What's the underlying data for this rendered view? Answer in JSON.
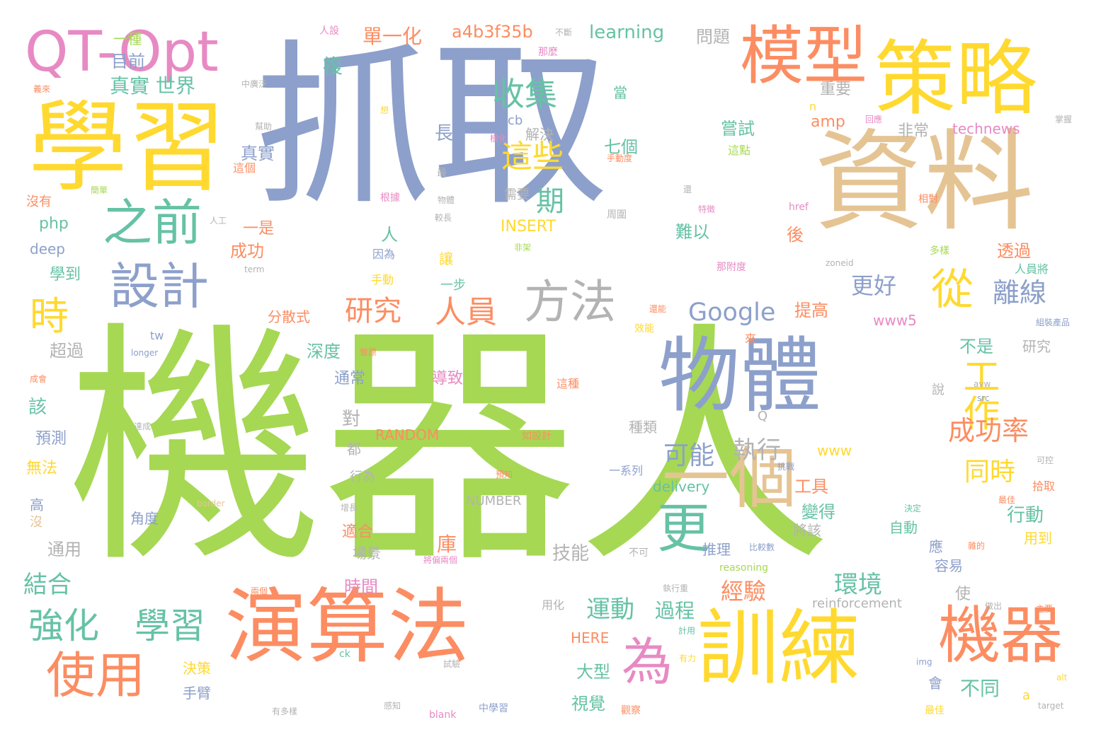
{
  "palette": {
    "green": "#a6d854",
    "blue": "#8da0cb",
    "orange": "#fc8d62",
    "yellow": "#ffd92f",
    "tan": "#e5c494",
    "teal": "#66c2a5",
    "pink": "#e78ac3",
    "gray": "#b3b3b3"
  },
  "words": [
    {
      "text": "機器人",
      "c": "green"
    },
    {
      "text": "抓取",
      "c": "blue"
    },
    {
      "text": "資料",
      "c": "tan"
    },
    {
      "text": "策略",
      "c": "yellow"
    },
    {
      "text": "學習",
      "c": "yellow"
    },
    {
      "text": "QT-Opt",
      "c": "pink"
    },
    {
      "text": "模型",
      "c": "orange"
    },
    {
      "text": "演算法",
      "c": "orange"
    },
    {
      "text": "訓練",
      "c": "yellow"
    },
    {
      "text": "物體",
      "c": "blue"
    },
    {
      "text": "一個",
      "c": "tan"
    },
    {
      "text": "機器",
      "c": "orange"
    },
    {
      "text": "之前",
      "c": "teal"
    },
    {
      "text": "設計",
      "c": "blue"
    },
    {
      "text": "方法",
      "c": "gray"
    },
    {
      "text": "使用",
      "c": "orange"
    },
    {
      "text": "從",
      "c": "yellow"
    },
    {
      "text": "更",
      "c": "teal"
    },
    {
      "text": "時",
      "c": "yellow"
    },
    {
      "text": "工作",
      "c": "yellow"
    },
    {
      "text": "為",
      "c": "pink"
    },
    {
      "text": "強化",
      "c": "teal"
    },
    {
      "text": "學習",
      "c": "teal"
    },
    {
      "text": "收集",
      "c": "teal"
    },
    {
      "text": "這些",
      "c": "yellow"
    },
    {
      "text": "期",
      "c": "teal"
    },
    {
      "text": "研究",
      "c": "orange"
    },
    {
      "text": "人員",
      "c": "orange"
    },
    {
      "text": "Google",
      "c": "blue"
    },
    {
      "text": "成功率",
      "c": "orange"
    },
    {
      "text": "可能",
      "c": "blue"
    },
    {
      "text": "執行",
      "c": "gray"
    },
    {
      "text": "同時",
      "c": "yellow"
    },
    {
      "text": "離線",
      "c": "blue"
    },
    {
      "text": "更好",
      "c": "blue"
    },
    {
      "text": "環境",
      "c": "teal"
    },
    {
      "text": "運動",
      "c": "teal"
    },
    {
      "text": "經驗",
      "c": "orange"
    },
    {
      "text": "過程",
      "c": "teal"
    },
    {
      "text": "真實 世界",
      "c": "teal"
    },
    {
      "text": "單一化",
      "c": "orange"
    },
    {
      "text": "a4b3f35b",
      "c": "orange"
    },
    {
      "text": "learning",
      "c": "teal"
    },
    {
      "text": "問題",
      "c": "gray"
    },
    {
      "text": "複",
      "c": "teal"
    },
    {
      "text": "目前",
      "c": "blue"
    },
    {
      "text": "一種",
      "c": "green"
    },
    {
      "text": "重要",
      "c": "gray"
    },
    {
      "text": "technews",
      "c": "pink"
    },
    {
      "text": "嘗試",
      "c": "teal"
    },
    {
      "text": "非常",
      "c": "gray"
    },
    {
      "text": "這點",
      "c": "green"
    },
    {
      "text": "解決",
      "c": "gray"
    },
    {
      "text": "amp",
      "c": "orange"
    },
    {
      "text": "cb",
      "c": "blue"
    },
    {
      "text": "長",
      "c": "blue"
    },
    {
      "text": "當",
      "c": "teal"
    },
    {
      "text": "七個",
      "c": "teal"
    },
    {
      "text": "需要",
      "c": "gray"
    },
    {
      "text": "真實",
      "c": "blue"
    },
    {
      "text": "INSERT",
      "c": "yellow"
    },
    {
      "text": "一是",
      "c": "orange"
    },
    {
      "text": "難以",
      "c": "teal"
    },
    {
      "text": "後",
      "c": "orange"
    },
    {
      "text": "透過",
      "c": "orange"
    },
    {
      "text": "php",
      "c": "teal"
    },
    {
      "text": "deep",
      "c": "blue"
    },
    {
      "text": "學到",
      "c": "teal"
    },
    {
      "text": "成功",
      "c": "orange"
    },
    {
      "text": "人",
      "c": "teal"
    },
    {
      "text": "讓",
      "c": "yellow"
    },
    {
      "text": "分散式",
      "c": "orange"
    },
    {
      "text": "提高",
      "c": "orange"
    },
    {
      "text": "www5",
      "c": "pink"
    },
    {
      "text": "研究",
      "c": "gray"
    },
    {
      "text": "不是",
      "c": "teal"
    },
    {
      "text": "深度",
      "c": "teal"
    },
    {
      "text": "超過",
      "c": "gray"
    },
    {
      "text": "通常",
      "c": "blue"
    },
    {
      "text": "導致",
      "c": "pink"
    },
    {
      "text": "這種",
      "c": "orange"
    },
    {
      "text": "該",
      "c": "teal"
    },
    {
      "text": "對",
      "c": "gray"
    },
    {
      "text": "預測",
      "c": "blue"
    },
    {
      "text": "RANDOM",
      "c": "orange"
    },
    {
      "text": "無法",
      "c": "yellow"
    },
    {
      "text": "都",
      "c": "gray"
    },
    {
      "text": "種類",
      "c": "gray"
    },
    {
      "text": "www",
      "c": "yellow"
    },
    {
      "text": "delivery",
      "c": "teal"
    },
    {
      "text": "NUMBER",
      "c": "gray"
    },
    {
      "text": "工具",
      "c": "orange"
    },
    {
      "text": "變得",
      "c": "teal"
    },
    {
      "text": "將該",
      "c": "gray"
    },
    {
      "text": "行動",
      "c": "teal"
    },
    {
      "text": "自動",
      "c": "teal"
    },
    {
      "text": "應",
      "c": "blue"
    },
    {
      "text": "用到",
      "c": "yellow"
    },
    {
      "text": "容易",
      "c": "blue"
    },
    {
      "text": "推理",
      "c": "blue"
    },
    {
      "text": "技能",
      "c": "gray"
    },
    {
      "text": "庫",
      "c": "orange"
    },
    {
      "text": "適合",
      "c": "orange"
    },
    {
      "text": "場景",
      "c": "gray"
    },
    {
      "text": "行為",
      "c": "gray"
    },
    {
      "text": "角度",
      "c": "blue"
    },
    {
      "text": "通用",
      "c": "gray"
    },
    {
      "text": "高",
      "c": "blue"
    },
    {
      "text": "沒",
      "c": "tan"
    },
    {
      "text": "結合",
      "c": "teal"
    },
    {
      "text": "時間",
      "c": "pink"
    },
    {
      "text": "使",
      "c": "gray"
    },
    {
      "text": "reinforcement",
      "c": "gray"
    },
    {
      "text": "用化",
      "c": "gray"
    },
    {
      "text": "HERE",
      "c": "orange"
    },
    {
      "text": "大型",
      "c": "teal"
    },
    {
      "text": "視覺",
      "c": "teal"
    },
    {
      "text": "決策",
      "c": "yellow"
    },
    {
      "text": "手臂",
      "c": "blue"
    },
    {
      "text": "會",
      "c": "blue"
    },
    {
      "text": "不同",
      "c": "teal"
    },
    {
      "text": "一步",
      "c": "teal"
    },
    {
      "text": "手動",
      "c": "yellow"
    },
    {
      "text": "因為",
      "c": "blue"
    },
    {
      "text": "來",
      "c": "orange"
    },
    {
      "text": "效能",
      "c": "yellow"
    },
    {
      "text": "tw",
      "c": "blue"
    },
    {
      "text": "longer",
      "c": "blue"
    },
    {
      "text": "term",
      "c": "gray"
    },
    {
      "text": "href",
      "c": "pink"
    },
    {
      "text": "zoneid",
      "c": "gray"
    },
    {
      "text": "src",
      "c": "blue"
    },
    {
      "text": "img",
      "c": "blue"
    },
    {
      "text": "alt",
      "c": "yellow"
    },
    {
      "text": "a",
      "c": "yellow"
    },
    {
      "text": "target",
      "c": "gray"
    },
    {
      "text": "blank",
      "c": "pink"
    },
    {
      "text": "ck",
      "c": "teal"
    },
    {
      "text": "border",
      "c": "tan"
    },
    {
      "text": "avw",
      "c": "gray"
    },
    {
      "text": "reasoning",
      "c": "green"
    },
    {
      "text": "Q",
      "c": "gray"
    },
    {
      "text": "n",
      "c": "yellow"
    },
    {
      "text": "一系列",
      "c": "blue"
    },
    {
      "text": "說",
      "c": "gray"
    },
    {
      "text": "人員將",
      "c": "teal"
    },
    {
      "text": "拾取",
      "c": "orange"
    },
    {
      "text": "組裝產品",
      "c": "blue"
    },
    {
      "text": "不斷",
      "c": "gray"
    },
    {
      "text": "那麼",
      "c": "pink"
    },
    {
      "text": "回應",
      "c": "pink"
    },
    {
      "text": "掌握",
      "c": "gray"
    },
    {
      "text": "人設",
      "c": "pink"
    },
    {
      "text": "義來",
      "c": "orange"
    },
    {
      "text": "中廣泛",
      "c": "gray"
    },
    {
      "text": "幫助",
      "c": "gray"
    },
    {
      "text": "這個",
      "c": "orange"
    },
    {
      "text": "沒有",
      "c": "orange"
    },
    {
      "text": "簡單",
      "c": "green"
    },
    {
      "text": "根據",
      "c": "pink"
    },
    {
      "text": "物體",
      "c": "gray"
    },
    {
      "text": "較長",
      "c": "gray"
    },
    {
      "text": "非架",
      "c": "green"
    },
    {
      "text": "人工",
      "c": "gray"
    },
    {
      "text": "周圍",
      "c": "gray"
    },
    {
      "text": "那附度",
      "c": "pink"
    },
    {
      "text": "還能",
      "c": "orange"
    },
    {
      "text": "特徵",
      "c": "pink"
    },
    {
      "text": "多樣",
      "c": "green"
    },
    {
      "text": "相對",
      "c": "orange"
    },
    {
      "text": "手動度",
      "c": "orange"
    },
    {
      "text": "模化",
      "c": "pink"
    },
    {
      "text": "最",
      "c": "gray"
    },
    {
      "text": "想",
      "c": "yellow"
    },
    {
      "text": "還",
      "c": "gray"
    },
    {
      "text": "成會",
      "c": "orange"
    },
    {
      "text": "管原",
      "c": "orange"
    },
    {
      "text": "達成",
      "c": "gray"
    },
    {
      "text": "如設計",
      "c": "orange"
    },
    {
      "text": "預知",
      "c": "orange"
    },
    {
      "text": "挑戰",
      "c": "blue"
    },
    {
      "text": "增長",
      "c": "gray"
    },
    {
      "text": "決定",
      "c": "teal"
    },
    {
      "text": "最佳",
      "c": "orange"
    },
    {
      "text": "可控",
      "c": "gray"
    },
    {
      "text": "比較數",
      "c": "blue"
    },
    {
      "text": "不可",
      "c": "gray"
    },
    {
      "text": "雜的",
      "c": "orange"
    },
    {
      "text": "將偏兩個",
      "c": "pink"
    },
    {
      "text": "兩個",
      "c": "orange"
    },
    {
      "text": "執行重",
      "c": "gray"
    },
    {
      "text": "做出",
      "c": "gray"
    },
    {
      "text": "主要",
      "c": "orange"
    },
    {
      "text": "計用",
      "c": "teal"
    },
    {
      "text": "有力",
      "c": "yellow"
    },
    {
      "text": "試驗",
      "c": "gray"
    },
    {
      "text": "中學習",
      "c": "blue"
    },
    {
      "text": "觀察",
      "c": "orange"
    },
    {
      "text": "感知",
      "c": "gray"
    },
    {
      "text": "有多樣",
      "c": "gray"
    },
    {
      "text": "最佳",
      "c": "yellow"
    }
  ]
}
